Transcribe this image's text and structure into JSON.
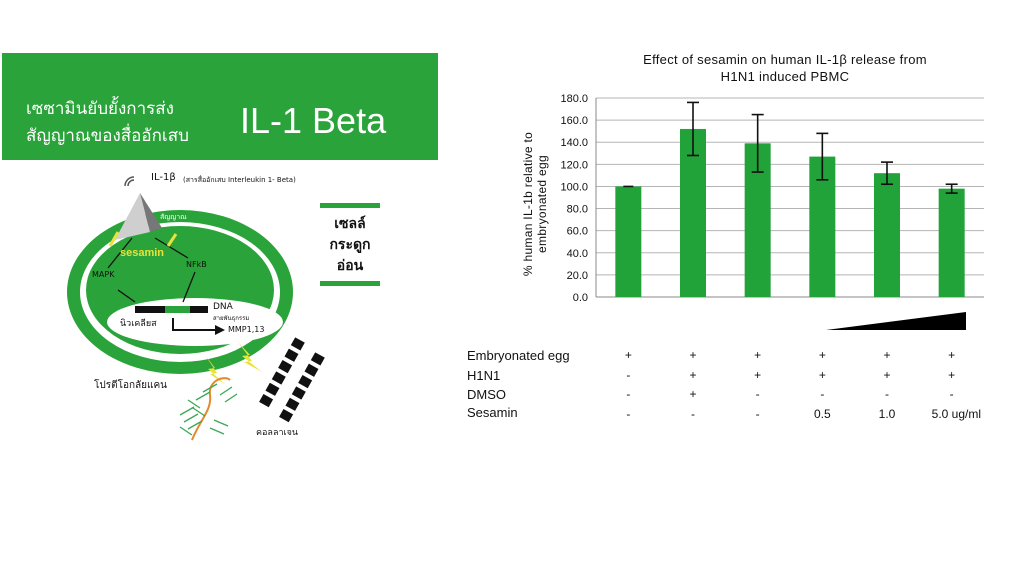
{
  "banner": {
    "thai_text": "เซซามินยับยั้งการส่ง\nสัญญาณของสื่ออักเสบ",
    "il_text": "IL-1 Beta"
  },
  "diagram": {
    "il1b_label": "IL-1β",
    "il1b_desc": "(สารสื่ออักเสบ Interleukin 1- Beta)",
    "receptor_label": "เสารับ\nสัญญาณ",
    "sesamin": "sesamin",
    "mapk": "MAPK",
    "nfkb": "NFkB",
    "dna": "DNA",
    "dna_thai": "สายพันธุกรรม",
    "nucleus": "นิวเคลียส",
    "mmp": "MMP1,13",
    "proteoglycan": "โปรตีโอกลัยแคน",
    "collagen": "คอลลาเจน",
    "side_text": "เซลล์\nกระดูก\nอ่อน"
  },
  "colors": {
    "green": "#2aa43a",
    "bar_green": "#22a33a",
    "yellow": "#e8e23a"
  },
  "chart_data": {
    "type": "bar",
    "title": "Effect of sesamin on human IL-1β release from\nH1N1 induced PBMC",
    "ylabel": "% human IL-1b relative to\nembryonated egg",
    "ylim": [
      0,
      180
    ],
    "yticks": [
      "180.0",
      "160.0",
      "140.0",
      "120.0",
      "100.0",
      "80.0",
      "60.0",
      "40.0",
      "20.0",
      "0.0"
    ],
    "ytick_values": [
      180,
      160,
      140,
      120,
      100,
      80,
      60,
      40,
      20,
      0
    ],
    "values": [
      100,
      152,
      139,
      127,
      112,
      98
    ],
    "errors": [
      0,
      24,
      26,
      21,
      10,
      4
    ],
    "grid": true,
    "conditions": [
      {
        "label": "Embryonated egg",
        "cells": [
          "+",
          "+",
          "+",
          "+",
          "+",
          "+"
        ]
      },
      {
        "label": "H1N1",
        "cells": [
          "-",
          "+",
          "+",
          "+",
          "+",
          "+"
        ]
      },
      {
        "label": "DMSO",
        "cells": [
          "-",
          "+",
          "-",
          "-",
          "-",
          "-"
        ]
      },
      {
        "label": "Sesamin",
        "cells": [
          "-",
          "-",
          "-",
          "0.5",
          "1.0",
          "5.0  ug/ml"
        ]
      }
    ]
  }
}
